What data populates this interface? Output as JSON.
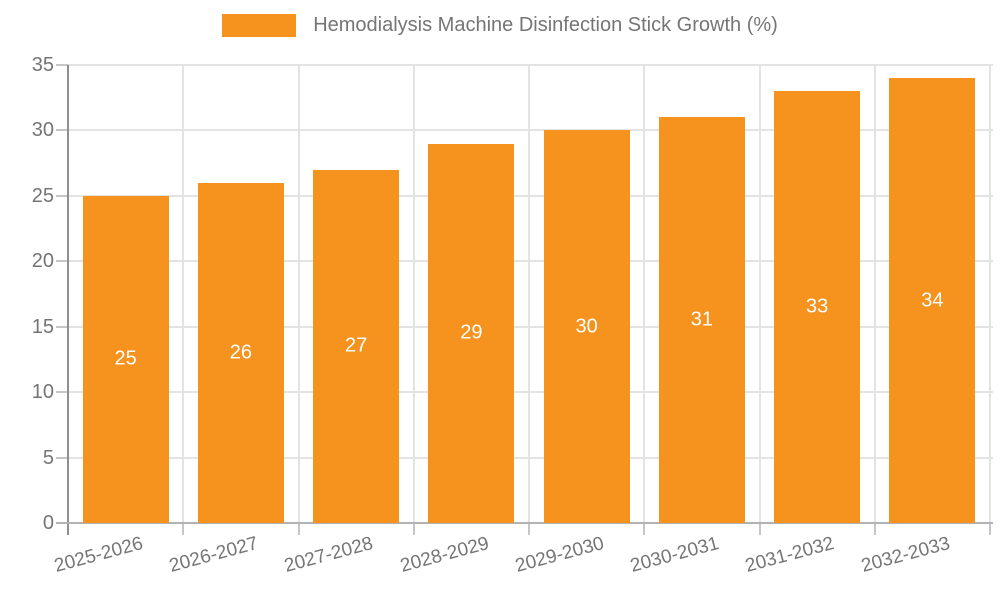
{
  "legend": {
    "label": "Hemodialysis Machine Disinfection Stick Growth (%)",
    "swatch_color": "#F6921E"
  },
  "chart_data": {
    "type": "bar",
    "title": "Hemodialysis Machine Disinfection Stick Growth (%)",
    "categories": [
      "2025-2026",
      "2026-2027",
      "2027-2028",
      "2028-2029",
      "2029-2030",
      "2030-2031",
      "2031-2032",
      "2032-2033"
    ],
    "values": [
      25,
      26,
      27,
      29,
      30,
      31,
      33,
      34
    ],
    "bar_value_labels": [
      "25",
      "26",
      "27",
      "29",
      "30",
      "31",
      "33",
      "34"
    ],
    "ylabel": "",
    "xlabel": "",
    "ylim": [
      0,
      35
    ],
    "yticks": [
      0,
      5,
      10,
      15,
      20,
      25,
      30,
      35
    ],
    "grid": true,
    "legend_position": "top-center",
    "x_label_rotation_deg": -15,
    "colors": {
      "bar": "#F6921E",
      "bar_value_label": "#ffffff",
      "axis_text": "#757575",
      "grid_line": "#e3e3e3",
      "y_axis_line": "#8f8f8f",
      "x_axis_line": "#b3b3b3",
      "tick": "#c6c6c6",
      "background": "#ffffff"
    }
  }
}
